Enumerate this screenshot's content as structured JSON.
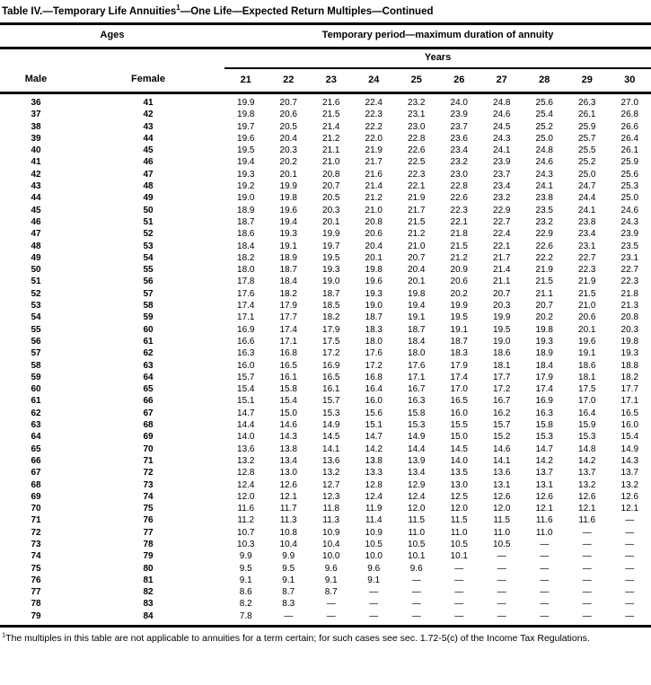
{
  "title": {
    "part1": "Table IV.—Temporary Life Annuities",
    "sup": "1",
    "part2": "—One Life—Expected Return Multiples—Continued"
  },
  "header": {
    "ages_label": "Ages",
    "period_label": "Temporary period—maximum duration of annuity",
    "years_label": "Years",
    "male_label": "Male",
    "female_label": "Female",
    "year_columns": [
      "21",
      "22",
      "23",
      "24",
      "25",
      "26",
      "27",
      "28",
      "29",
      "30"
    ]
  },
  "rows": [
    {
      "male": "36",
      "female": "41",
      "values": [
        "19.9",
        "20.7",
        "21.6",
        "22.4",
        "23.2",
        "24.0",
        "24.8",
        "25.6",
        "26.3",
        "27.0"
      ]
    },
    {
      "male": "37",
      "female": "42",
      "values": [
        "19.8",
        "20.6",
        "21.5",
        "22.3",
        "23.1",
        "23.9",
        "24.6",
        "25.4",
        "26.1",
        "26.8"
      ]
    },
    {
      "male": "38",
      "female": "43",
      "values": [
        "19.7",
        "20.5",
        "21.4",
        "22.2",
        "23.0",
        "23.7",
        "24.5",
        "25.2",
        "25.9",
        "26.6"
      ]
    },
    {
      "male": "39",
      "female": "44",
      "values": [
        "19.6",
        "20.4",
        "21.2",
        "22.0",
        "22.8",
        "23.6",
        "24.3",
        "25.0",
        "25.7",
        "26.4"
      ]
    },
    {
      "male": "40",
      "female": "45",
      "values": [
        "19.5",
        "20.3",
        "21.1",
        "21.9",
        "22.6",
        "23.4",
        "24.1",
        "24.8",
        "25.5",
        "26.1"
      ]
    },
    {
      "male": "41",
      "female": "46",
      "values": [
        "19.4",
        "20.2",
        "21.0",
        "21.7",
        "22.5",
        "23.2",
        "23.9",
        "24.6",
        "25.2",
        "25.9"
      ]
    },
    {
      "male": "42",
      "female": "47",
      "values": [
        "19.3",
        "20.1",
        "20.8",
        "21.6",
        "22.3",
        "23.0",
        "23.7",
        "24.3",
        "25.0",
        "25.6"
      ]
    },
    {
      "male": "43",
      "female": "48",
      "values": [
        "19.2",
        "19.9",
        "20.7",
        "21.4",
        "22.1",
        "22.8",
        "23.4",
        "24.1",
        "24.7",
        "25.3"
      ]
    },
    {
      "male": "44",
      "female": "49",
      "values": [
        "19.0",
        "19.8",
        "20.5",
        "21.2",
        "21.9",
        "22.6",
        "23.2",
        "23.8",
        "24.4",
        "25.0"
      ]
    },
    {
      "male": "45",
      "female": "50",
      "values": [
        "18.9",
        "19.6",
        "20.3",
        "21.0",
        "21.7",
        "22.3",
        "22.9",
        "23.5",
        "24.1",
        "24.6"
      ]
    },
    {
      "male": "46",
      "female": "51",
      "values": [
        "18.7",
        "19.4",
        "20.1",
        "20.8",
        "21.5",
        "22.1",
        "22.7",
        "23.2",
        "23.8",
        "24.3"
      ]
    },
    {
      "male": "47",
      "female": "52",
      "values": [
        "18.6",
        "19.3",
        "19.9",
        "20.6",
        "21.2",
        "21.8",
        "22.4",
        "22.9",
        "23.4",
        "23.9"
      ]
    },
    {
      "male": "48",
      "female": "53",
      "values": [
        "18.4",
        "19.1",
        "19.7",
        "20.4",
        "21.0",
        "21.5",
        "22.1",
        "22.6",
        "23.1",
        "23.5"
      ]
    },
    {
      "male": "49",
      "female": "54",
      "values": [
        "18.2",
        "18.9",
        "19.5",
        "20.1",
        "20.7",
        "21.2",
        "21.7",
        "22.2",
        "22.7",
        "23.1"
      ]
    },
    {
      "male": "50",
      "female": "55",
      "values": [
        "18.0",
        "18.7",
        "19.3",
        "19.8",
        "20.4",
        "20.9",
        "21.4",
        "21.9",
        "22.3",
        "22.7"
      ]
    },
    {
      "male": "51",
      "female": "56",
      "values": [
        "17.8",
        "18.4",
        "19.0",
        "19.6",
        "20.1",
        "20.6",
        "21.1",
        "21.5",
        "21.9",
        "22.3"
      ]
    },
    {
      "male": "52",
      "female": "57",
      "values": [
        "17.6",
        "18.2",
        "18.7",
        "19.3",
        "19.8",
        "20.2",
        "20.7",
        "21.1",
        "21.5",
        "21.8"
      ]
    },
    {
      "male": "53",
      "female": "58",
      "values": [
        "17.4",
        "17.9",
        "18.5",
        "19.0",
        "19.4",
        "19.9",
        "20.3",
        "20.7",
        "21.0",
        "21.3"
      ]
    },
    {
      "male": "54",
      "female": "59",
      "values": [
        "17.1",
        "17.7",
        "18.2",
        "18.7",
        "19.1",
        "19.5",
        "19.9",
        "20.2",
        "20.6",
        "20.8"
      ]
    },
    {
      "male": "55",
      "female": "60",
      "values": [
        "16.9",
        "17.4",
        "17.9",
        "18.3",
        "18.7",
        "19.1",
        "19.5",
        "19.8",
        "20.1",
        "20.3"
      ]
    },
    {
      "male": "56",
      "female": "61",
      "values": [
        "16.6",
        "17.1",
        "17.5",
        "18.0",
        "18.4",
        "18.7",
        "19.0",
        "19.3",
        "19.6",
        "19.8"
      ]
    },
    {
      "male": "57",
      "female": "62",
      "values": [
        "16.3",
        "16.8",
        "17.2",
        "17.6",
        "18.0",
        "18.3",
        "18.6",
        "18.9",
        "19.1",
        "19.3"
      ]
    },
    {
      "male": "58",
      "female": "63",
      "values": [
        "16.0",
        "16.5",
        "16.9",
        "17.2",
        "17.6",
        "17.9",
        "18.1",
        "18.4",
        "18.6",
        "18.8"
      ]
    },
    {
      "male": "59",
      "female": "64",
      "values": [
        "15.7",
        "16.1",
        "16.5",
        "16.8",
        "17.1",
        "17.4",
        "17.7",
        "17.9",
        "18.1",
        "18.2"
      ]
    },
    {
      "male": "60",
      "female": "65",
      "values": [
        "15.4",
        "15.8",
        "16.1",
        "16.4",
        "16.7",
        "17.0",
        "17.2",
        "17.4",
        "17.5",
        "17.7"
      ]
    },
    {
      "male": "61",
      "female": "66",
      "values": [
        "15.1",
        "15.4",
        "15.7",
        "16.0",
        "16.3",
        "16.5",
        "16.7",
        "16.9",
        "17.0",
        "17.1"
      ]
    },
    {
      "male": "62",
      "female": "67",
      "values": [
        "14.7",
        "15.0",
        "15.3",
        "15.6",
        "15.8",
        "16.0",
        "16.2",
        "16.3",
        "16.4",
        "16.5"
      ]
    },
    {
      "male": "63",
      "female": "68",
      "values": [
        "14.4",
        "14.6",
        "14.9",
        "15.1",
        "15.3",
        "15.5",
        "15.7",
        "15.8",
        "15.9",
        "16.0"
      ]
    },
    {
      "male": "64",
      "female": "69",
      "values": [
        "14.0",
        "14.3",
        "14.5",
        "14.7",
        "14.9",
        "15.0",
        "15.2",
        "15.3",
        "15.3",
        "15.4"
      ]
    },
    {
      "male": "65",
      "female": "70",
      "values": [
        "13.6",
        "13.8",
        "14.1",
        "14.2",
        "14.4",
        "14.5",
        "14.6",
        "14.7",
        "14.8",
        "14.9"
      ]
    },
    {
      "male": "66",
      "female": "71",
      "values": [
        "13.2",
        "13.4",
        "13.6",
        "13.8",
        "13.9",
        "14.0",
        "14.1",
        "14.2",
        "14.2",
        "14.3"
      ]
    },
    {
      "male": "67",
      "female": "72",
      "values": [
        "12.8",
        "13.0",
        "13.2",
        "13.3",
        "13.4",
        "13.5",
        "13.6",
        "13.7",
        "13.7",
        "13.7"
      ]
    },
    {
      "male": "68",
      "female": "73",
      "values": [
        "12.4",
        "12.6",
        "12.7",
        "12.8",
        "12.9",
        "13.0",
        "13.1",
        "13.1",
        "13.2",
        "13.2"
      ]
    },
    {
      "male": "69",
      "female": "74",
      "values": [
        "12.0",
        "12.1",
        "12.3",
        "12.4",
        "12.4",
        "12.5",
        "12.6",
        "12.6",
        "12.6",
        "12.6"
      ]
    },
    {
      "male": "70",
      "female": "75",
      "values": [
        "11.6",
        "11.7",
        "11.8",
        "11.9",
        "12.0",
        "12.0",
        "12.0",
        "12.1",
        "12.1",
        "12.1"
      ]
    },
    {
      "male": "71",
      "female": "76",
      "values": [
        "11.2",
        "11.3",
        "11.3",
        "11.4",
        "11.5",
        "11.5",
        "11.5",
        "11.6",
        "11.6",
        "—"
      ]
    },
    {
      "male": "72",
      "female": "77",
      "values": [
        "10.7",
        "10.8",
        "10.9",
        "10.9",
        "11.0",
        "11.0",
        "11.0",
        "11.0",
        "—",
        "—"
      ]
    },
    {
      "male": "73",
      "female": "78",
      "values": [
        "10.3",
        "10.4",
        "10.4",
        "10.5",
        "10.5",
        "10.5",
        "10.5",
        "—",
        "—",
        "—"
      ]
    },
    {
      "male": "74",
      "female": "79",
      "values": [
        "9.9",
        "9.9",
        "10.0",
        "10.0",
        "10.1",
        "10.1",
        "—",
        "—",
        "—",
        "—"
      ]
    },
    {
      "male": "75",
      "female": "80",
      "values": [
        "9.5",
        "9.5",
        "9.6",
        "9.6",
        "9.6",
        "—",
        "—",
        "—",
        "—",
        "—"
      ]
    },
    {
      "male": "76",
      "female": "81",
      "values": [
        "9.1",
        "9.1",
        "9.1",
        "9.1",
        "—",
        "—",
        "—",
        "—",
        "—",
        "—"
      ]
    },
    {
      "male": "77",
      "female": "82",
      "values": [
        "8.6",
        "8.7",
        "8.7",
        "—",
        "—",
        "—",
        "—",
        "—",
        "—",
        "—"
      ]
    },
    {
      "male": "78",
      "female": "83",
      "values": [
        "8.2",
        "8.3",
        "—",
        "—",
        "—",
        "—",
        "—",
        "—",
        "—",
        "—"
      ]
    },
    {
      "male": "79",
      "female": "84",
      "values": [
        "7.8",
        "—",
        "—",
        "—",
        "—",
        "—",
        "—",
        "—",
        "—",
        "—"
      ]
    }
  ],
  "footnote": {
    "sup": "1",
    "text": "The multiples in this table are not applicable to annuities for a term certain; for such cases see sec. 1.72-5(c) of the Income Tax Regulations."
  }
}
